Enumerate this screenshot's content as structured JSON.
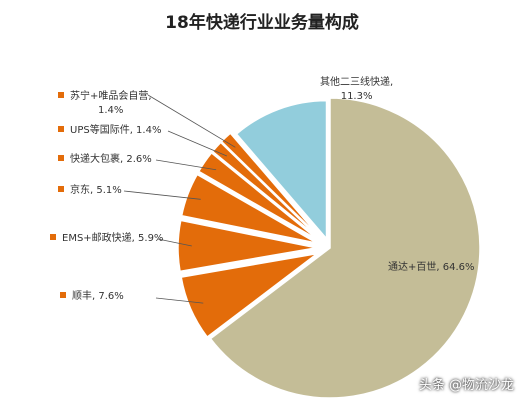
{
  "chart_data": {
    "type": "pie",
    "title": "18年快递行业业务量构成",
    "slices": [
      {
        "label": "通达+百世",
        "value": 64.6,
        "display": "通达+百世, 64.6%",
        "color": "#c4bd97"
      },
      {
        "label": "顺丰",
        "value": 7.6,
        "display": "顺丰, 7.6%",
        "color": "#e36c0a"
      },
      {
        "label": "EMS+邮政快递",
        "value": 5.9,
        "display": "EMS+邮政快递, 5.9%",
        "color": "#e36c0a"
      },
      {
        "label": "京东",
        "value": 5.1,
        "display": "京东, 5.1%",
        "color": "#e36c0a"
      },
      {
        "label": "快递大包裹",
        "value": 2.6,
        "display": "快递大包裹, 2.6%",
        "color": "#e36c0a"
      },
      {
        "label": "UPS等国际件",
        "value": 1.4,
        "display": "UPS等国际件, 1.4%",
        "color": "#e36c0a"
      },
      {
        "label": "苏宁+唯品会自营",
        "value": 1.4,
        "display": "苏宁+唯品会自营,\n1.4%",
        "color": "#e36c0a"
      },
      {
        "label": "其他二三线快递",
        "value": 11.3,
        "display": "其他二三线快递,\n11.3%",
        "color": "#92cddc"
      }
    ]
  },
  "watermark": "头条 @物流沙龙"
}
